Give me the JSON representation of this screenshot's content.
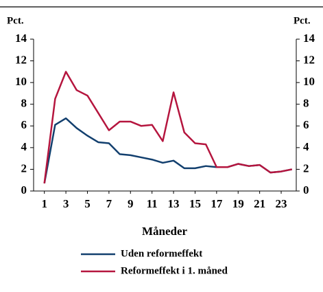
{
  "chart_data": {
    "type": "line",
    "y_label": "Pct.",
    "y2_label": "Pct.",
    "x_label": "Måneder",
    "x": [
      1,
      2,
      3,
      4,
      5,
      6,
      7,
      8,
      9,
      10,
      11,
      12,
      13,
      14,
      15,
      16,
      17,
      18,
      19,
      20,
      21,
      22,
      23,
      24
    ],
    "xlim": [
      0,
      24.4
    ],
    "xticks": [
      1,
      3,
      5,
      7,
      9,
      11,
      13,
      15,
      17,
      19,
      21,
      23
    ],
    "ylim": [
      0,
      14
    ],
    "yticks": [
      0,
      2,
      4,
      6,
      8,
      10,
      12,
      14
    ],
    "y2lim": [
      0,
      14
    ],
    "y2ticks": [
      0,
      2,
      4,
      6,
      8,
      10,
      12,
      14
    ],
    "series": [
      {
        "name": "Uden reformeffekt",
        "color": "#123f6e",
        "values": [
          0.7,
          6.1,
          6.7,
          5.8,
          5.1,
          4.5,
          4.4,
          3.4,
          3.3,
          3.1,
          2.9,
          2.6,
          2.8,
          2.1,
          2.1,
          2.3,
          2.2,
          2.2,
          2.5,
          2.3,
          2.4,
          1.7,
          1.8,
          2.0
        ]
      },
      {
        "name": "Reformeffekt i 1. måned",
        "color": "#b5153e",
        "values": [
          0.7,
          8.5,
          11.0,
          9.3,
          8.8,
          7.2,
          5.6,
          6.4,
          6.4,
          6.0,
          6.1,
          4.6,
          9.1,
          5.4,
          4.4,
          4.3,
          2.2,
          2.2,
          2.5,
          2.3,
          2.4,
          1.7,
          1.8,
          2.0
        ]
      }
    ]
  }
}
